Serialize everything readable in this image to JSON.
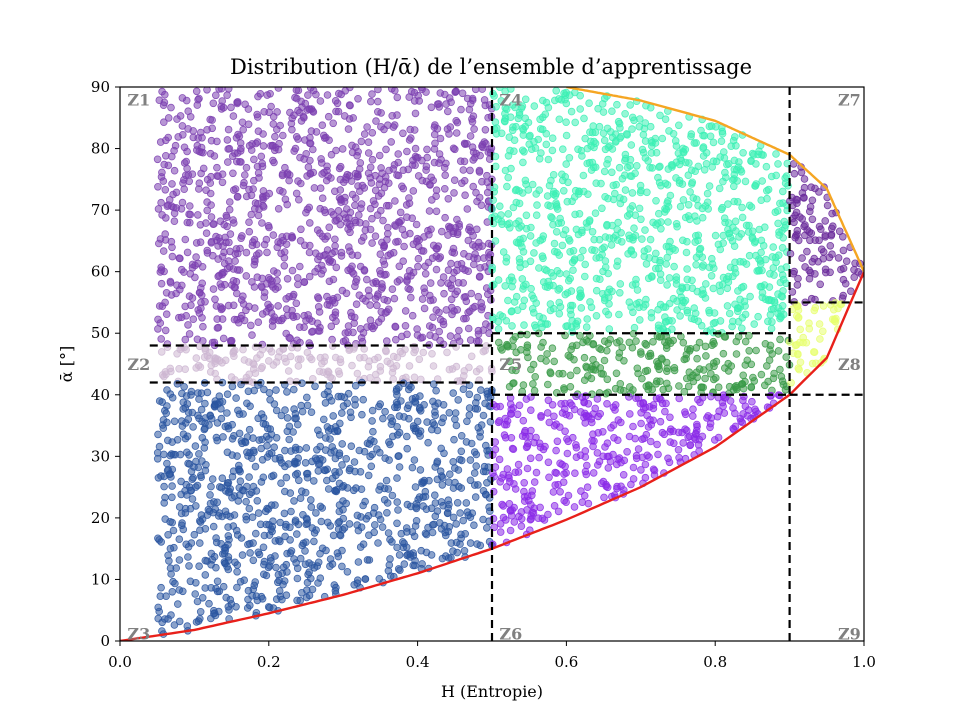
{
  "chart_data": {
    "type": "scatter",
    "title": "Distribution (H/ᾱ) de l’ensemble d’apprentissage",
    "xlabel": "H (Entropie)",
    "ylabel": "ᾱ [°]",
    "xlim": [
      0,
      1
    ],
    "ylim": [
      0,
      90
    ],
    "xticks": [
      "0.0",
      "0.2",
      "0.4",
      "0.6",
      "0.8",
      "1.0"
    ],
    "yticks": [
      "0",
      "10",
      "20",
      "30",
      "40",
      "50",
      "60",
      "70",
      "80",
      "90"
    ],
    "grid": false,
    "legend": "none",
    "boundary_curves": [
      {
        "color": "#e8201a",
        "x": [
          0.0,
          0.1,
          0.2,
          0.3,
          0.4,
          0.5,
          0.6,
          0.7,
          0.8,
          0.9,
          0.95,
          1.0
        ],
        "y": [
          0.0,
          1.8,
          4.5,
          7.5,
          11.0,
          15.0,
          19.7,
          25.0,
          31.5,
          40.0,
          46.0,
          60.0
        ]
      },
      {
        "color": "#f5a623",
        "x": [
          0.6,
          0.7,
          0.8,
          0.9,
          0.95,
          1.0
        ],
        "y": [
          90.0,
          87.8,
          84.5,
          79.0,
          73.5,
          60.0
        ]
      }
    ],
    "zone_boundaries": {
      "vertical": [
        {
          "x": 0.5,
          "y": [
            0,
            90
          ]
        },
        {
          "x": 0.9,
          "y": [
            0,
            90
          ]
        }
      ],
      "horizontal": [
        {
          "y": 48,
          "x": [
            0.04,
            0.5
          ]
        },
        {
          "y": 42,
          "x": [
            0.04,
            0.5
          ]
        },
        {
          "y": 50,
          "x": [
            0.5,
            0.9
          ]
        },
        {
          "y": 40,
          "x": [
            0.5,
            0.9
          ]
        },
        {
          "y": 55,
          "x": [
            0.9,
            1.0
          ]
        },
        {
          "y": 40,
          "x": [
            0.9,
            1.0
          ]
        }
      ]
    },
    "zones": [
      {
        "label": "Z1",
        "color": "#7b3fb0",
        "h": [
          0.05,
          0.5
        ],
        "alpha": [
          48,
          90
        ],
        "label_at": [
          0.01,
          88
        ]
      },
      {
        "label": "Z2",
        "color": "#cdb7d2",
        "h": [
          0.05,
          0.5
        ],
        "alpha": [
          42,
          48
        ],
        "label_at": [
          0.01,
          45
        ]
      },
      {
        "label": "Z3",
        "color": "#2a55a0",
        "h": [
          0.05,
          0.5
        ],
        "alpha": [
          0,
          42
        ],
        "label_at": [
          0.01,
          1.2
        ]
      },
      {
        "label": "Z4",
        "color": "#3cf0b5",
        "h": [
          0.5,
          0.9
        ],
        "alpha": [
          50,
          90
        ],
        "label_at": [
          0.51,
          88
        ]
      },
      {
        "label": "Z5",
        "color": "#3a9a48",
        "h": [
          0.5,
          0.9
        ],
        "alpha": [
          40,
          50
        ],
        "label_at": [
          0.51,
          45
        ]
      },
      {
        "label": "Z6",
        "color": "#8a2ae8",
        "h": [
          0.5,
          0.9
        ],
        "alpha": [
          0,
          40
        ],
        "label_at": [
          0.51,
          1.2
        ]
      },
      {
        "label": "Z7",
        "color": "#6a2a9a",
        "h": [
          0.9,
          1.0
        ],
        "alpha": [
          55,
          90
        ],
        "label_at": [
          0.965,
          88
        ]
      },
      {
        "label": "Z8",
        "color": "#e8ff70",
        "h": [
          0.9,
          1.0
        ],
        "alpha": [
          40,
          55
        ],
        "label_at": [
          0.965,
          45
        ]
      },
      {
        "label": "Z9",
        "color": "#9b7fc0",
        "h": [
          0.9,
          1.0
        ],
        "alpha": [
          0,
          40
        ],
        "label_at": [
          0.965,
          1.2
        ]
      }
    ]
  }
}
